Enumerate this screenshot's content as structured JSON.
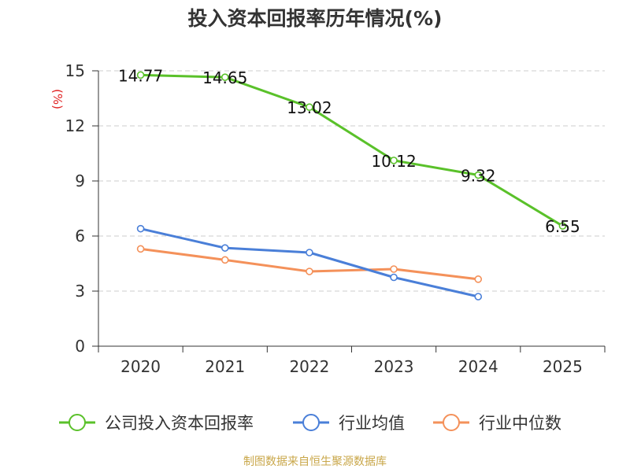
{
  "chart_data": {
    "type": "line",
    "title": "投入资本回报率历年情况(%)",
    "ylabel": "(%)",
    "ylim": [
      0,
      15
    ],
    "yticks": [
      0,
      3,
      6,
      9,
      12,
      15
    ],
    "categories": [
      "2020",
      "2021",
      "2022",
      "2023",
      "2024",
      "2025"
    ],
    "grid": true,
    "legend_position": "bottom",
    "series": [
      {
        "name": "公司投入资本回报率",
        "color": "#5ac12a",
        "values": [
          14.77,
          14.65,
          13.02,
          10.12,
          9.32,
          6.55
        ],
        "labels": [
          "14.77",
          "14.65",
          "13.02",
          "10.12",
          "9.32",
          "6.55"
        ],
        "show_labels": true
      },
      {
        "name": "行业均值",
        "color": "#4a7fd8",
        "values": [
          6.4,
          5.35,
          5.1,
          3.75,
          2.7,
          null
        ],
        "show_labels": false
      },
      {
        "name": "行业中位数",
        "color": "#f4915a",
        "values": [
          5.3,
          4.7,
          4.07,
          4.2,
          3.65,
          null
        ],
        "show_labels": false
      }
    ]
  },
  "source": "制图数据来自恒生聚源数据库",
  "colors": {
    "title": "#333333",
    "ylabel": "#e02020",
    "axis": "#333333",
    "grid": "#cccccc",
    "source": "#c9a74a"
  }
}
